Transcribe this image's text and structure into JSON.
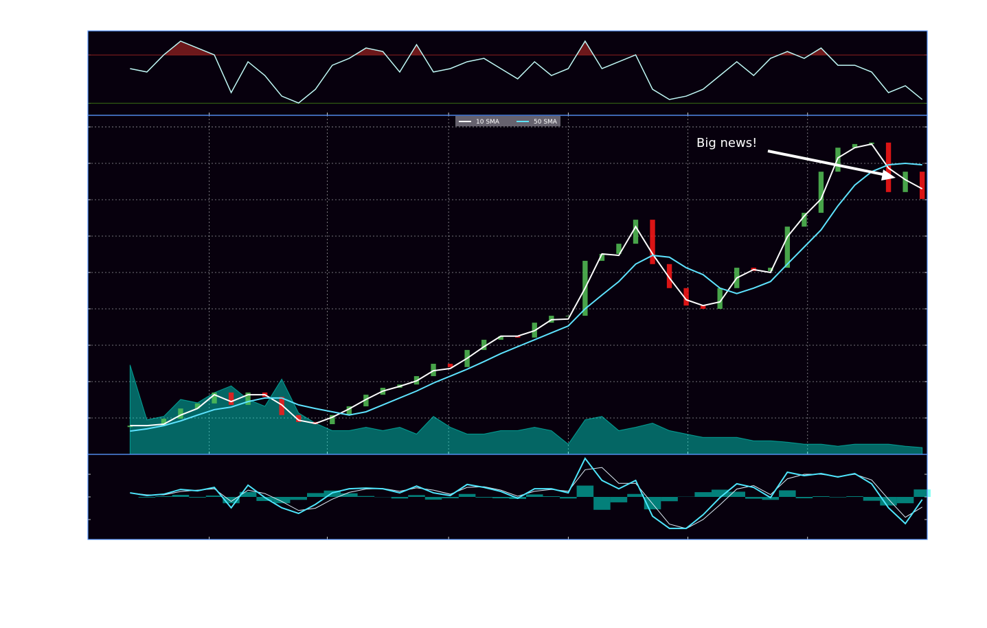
{
  "chart_data": [
    {
      "type": "line",
      "x": [
        0,
        10,
        20,
        30,
        40,
        50,
        60,
        70,
        80,
        90,
        100,
        110,
        120,
        130,
        140,
        150,
        160,
        170,
        180,
        190,
        200,
        210,
        220,
        230,
        240,
        250,
        260,
        270,
        280,
        290,
        300,
        310,
        320,
        330,
        340,
        350,
        360,
        370,
        380,
        390,
        400,
        410,
        420,
        430,
        440,
        450,
        460,
        470
      ],
      "values": [
        58.7,
        55.9,
        70.1,
        81.5,
        75.8,
        70.1,
        38.8,
        64.4,
        53.0,
        35.9,
        30.2,
        41.6,
        61.5,
        67.2,
        75.8,
        72.9,
        55.9,
        78.6,
        55.9,
        58.7,
        64.4,
        67.2,
        58.7,
        50.2,
        64.4,
        53.0,
        58.7,
        81.5,
        58.7,
        64.4,
        70.1,
        41.6,
        33.1,
        35.9,
        41.6,
        53.0,
        64.4,
        53.0,
        67.2,
        72.9,
        67.2,
        75.8,
        61.5,
        61.5,
        55.9,
        38.8,
        44.5,
        33.1
      ],
      "color": "#c1f9f7",
      "hlines": [
        {
          "value": 70,
          "color": "#8f2020"
        },
        {
          "value": 30,
          "color": "#386d13"
        }
      ],
      "xlim": [
        -25,
        473
      ],
      "xticks": [
        47,
        117,
        189,
        260,
        331,
        402
      ],
      "ylim": [
        20,
        90
      ],
      "yticks": [
        30,
        70
      ]
    },
    {
      "type": "candlestick",
      "x": [
        0,
        10,
        20,
        30,
        40,
        50,
        60,
        70,
        80,
        90,
        100,
        110,
        120,
        130,
        140,
        150,
        160,
        170,
        180,
        190,
        200,
        210,
        220,
        230,
        240,
        250,
        260,
        270,
        280,
        290,
        300,
        310,
        320,
        330,
        340,
        350,
        360,
        370,
        380,
        390,
        400,
        410,
        420,
        430,
        440,
        450,
        460,
        470
      ],
      "open": [
        0.75,
        0.79,
        0.79,
        0.98,
        1.26,
        1.4,
        1.7,
        1.36,
        1.7,
        1.58,
        1.08,
        0.89,
        0.83,
        1.08,
        1.32,
        1.64,
        1.83,
        1.92,
        2.15,
        2.49,
        2.4,
        2.87,
        3.15,
        3.25,
        3.21,
        3.62,
        3.81,
        3.81,
        5.32,
        5.51,
        5.79,
        6.45,
        5.23,
        4.57,
        4.09,
        4.0,
        4.57,
        5.13,
        5.04,
        5.13,
        6.26,
        6.64,
        7.77,
        8.43,
        8.53,
        8.57,
        7.21,
        7.77
      ],
      "close": [
        0.79,
        0.79,
        0.98,
        1.26,
        1.4,
        1.7,
        1.36,
        1.7,
        1.58,
        1.08,
        0.89,
        0.83,
        1.08,
        1.32,
        1.64,
        1.83,
        1.92,
        2.15,
        2.49,
        2.4,
        2.87,
        3.15,
        3.25,
        3.21,
        3.62,
        3.81,
        3.81,
        5.32,
        5.51,
        5.79,
        6.45,
        5.23,
        4.57,
        4.09,
        4.0,
        4.57,
        5.13,
        5.04,
        5.13,
        6.26,
        6.64,
        7.77,
        8.43,
        8.53,
        8.57,
        7.21,
        7.77,
        7.02
      ],
      "up_color": "#53c156",
      "down_color": "#ff1717",
      "series": [
        {
          "name": "10 SMA",
          "color": "#ffffff",
          "values": [
            0.79,
            0.79,
            0.83,
            1.08,
            1.26,
            1.64,
            1.45,
            1.64,
            1.64,
            1.36,
            0.94,
            0.85,
            1.02,
            1.25,
            1.51,
            1.74,
            1.87,
            2.02,
            2.3,
            2.36,
            2.64,
            2.96,
            3.25,
            3.25,
            3.4,
            3.7,
            3.72,
            4.57,
            5.51,
            5.47,
            6.26,
            5.51,
            4.85,
            4.25,
            4.09,
            4.19,
            4.85,
            5.08,
            5.0,
            5.98,
            6.55,
            7.02,
            8.15,
            8.43,
            8.53,
            7.87,
            7.55,
            7.3
          ]
        },
        {
          "name": "50 SMA",
          "color": "#5ee3ff",
          "values": [
            0.64,
            0.7,
            0.79,
            0.92,
            1.08,
            1.23,
            1.3,
            1.45,
            1.55,
            1.55,
            1.36,
            1.26,
            1.17,
            1.08,
            1.17,
            1.36,
            1.55,
            1.74,
            1.96,
            2.15,
            2.34,
            2.55,
            2.77,
            2.96,
            3.15,
            3.34,
            3.53,
            4.0,
            4.38,
            4.75,
            5.23,
            5.47,
            5.42,
            5.13,
            4.94,
            4.57,
            4.42,
            4.57,
            4.75,
            5.23,
            5.7,
            6.17,
            6.83,
            7.4,
            7.77,
            7.96,
            8.0,
            7.96
          ]
        }
      ],
      "volume": {
        "color": "#00ffe8",
        "axis": "y2",
        "values": [
          13.2,
          5.1,
          5.6,
          8.1,
          7.6,
          9.1,
          10.1,
          8.1,
          7.1,
          11.1,
          6.1,
          4.6,
          3.5,
          3.5,
          4.0,
          3.5,
          4.0,
          3.0,
          5.6,
          4.0,
          3.0,
          3.0,
          3.5,
          3.5,
          4.0,
          3.5,
          1.5,
          5.1,
          5.6,
          3.5,
          4.0,
          4.6,
          3.5,
          3.0,
          2.5,
          2.5,
          2.5,
          2.0,
          2.0,
          1.8,
          1.5,
          1.5,
          1.2,
          1.5,
          1.5,
          1.5,
          1.2,
          1.0
        ]
      },
      "annotation": "Big news!",
      "grid": true,
      "legend": "upper center",
      "xlim": [
        -25,
        473
      ],
      "xticks": [
        47,
        117,
        189,
        260,
        331,
        402
      ],
      "ylim": [
        0,
        9.32
      ],
      "yticks": [
        1,
        2,
        3,
        4,
        5,
        6,
        7,
        8,
        9
      ],
      "y2lim": [
        0,
        50
      ]
    },
    {
      "type": "macd",
      "x": [
        0,
        10,
        20,
        30,
        40,
        50,
        60,
        70,
        80,
        90,
        100,
        110,
        120,
        130,
        140,
        150,
        160,
        170,
        180,
        190,
        200,
        210,
        220,
        230,
        240,
        250,
        260,
        270,
        280,
        290,
        300,
        310,
        320,
        330,
        340,
        350,
        360,
        370,
        380,
        390,
        400,
        410,
        420,
        430,
        440,
        450,
        460,
        470
      ],
      "macd": {
        "color": "#4ee6fd",
        "values": [
          0.18,
          0.06,
          0.12,
          0.33,
          0.27,
          0.42,
          -0.48,
          0.52,
          -0.03,
          -0.48,
          -0.73,
          -0.33,
          0.18,
          0.36,
          0.39,
          0.36,
          0.18,
          0.48,
          0.18,
          0.06,
          0.55,
          0.42,
          0.24,
          -0.06,
          0.36,
          0.36,
          0.18,
          1.7,
          0.73,
          0.36,
          0.73,
          -0.85,
          -1.39,
          -1.39,
          -0.79,
          -0.03,
          0.58,
          0.42,
          -0.03,
          1.09,
          0.94,
          1.03,
          0.88,
          1.03,
          0.58,
          -0.48,
          -1.18,
          -0.12
        ]
      },
      "signal": {
        "color": "#e1edf9",
        "values": [
          0.18,
          0.09,
          0.09,
          0.24,
          0.3,
          0.36,
          -0.2,
          0.3,
          0.15,
          -0.2,
          -0.6,
          -0.5,
          -0.1,
          0.2,
          0.35,
          0.37,
          0.25,
          0.4,
          0.3,
          0.12,
          0.42,
          0.45,
          0.3,
          0.03,
          0.25,
          0.33,
          0.25,
          1.2,
          1.3,
          0.6,
          0.6,
          -0.3,
          -1.2,
          -1.4,
          -1.0,
          -0.35,
          0.35,
          0.5,
          0.1,
          0.8,
          1.0,
          1.0,
          0.9,
          1.0,
          0.75,
          -0.1,
          -0.9,
          -0.45
        ]
      },
      "histogram": {
        "color": "#00ffe8",
        "values": [
          0,
          -0.03,
          0.03,
          0.09,
          -0.03,
          0.06,
          -0.28,
          0.22,
          -0.18,
          -0.28,
          -0.13,
          0.17,
          0.28,
          0.16,
          0.04,
          -0.01,
          -0.07,
          0.08,
          -0.12,
          -0.06,
          0.13,
          -0.03,
          -0.06,
          -0.09,
          0.11,
          0.03,
          -0.07,
          0.5,
          -0.57,
          -0.24,
          0.13,
          -0.55,
          -0.19,
          0.01,
          0.21,
          0.32,
          0.23,
          -0.08,
          -0.13,
          0.29,
          -0.06,
          0.03,
          -0.02,
          0.03,
          -0.17,
          -0.38,
          -0.28,
          0.33
        ]
      },
      "xlim": [
        -25,
        473
      ],
      "xticks": [
        47,
        117,
        189,
        260,
        331,
        402
      ],
      "ylim": [
        -1.88,
        1.88
      ],
      "yticks": [
        -1,
        0,
        1
      ]
    }
  ]
}
